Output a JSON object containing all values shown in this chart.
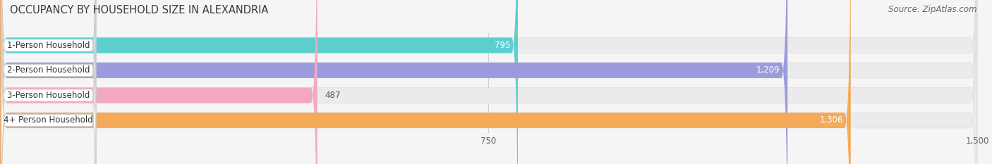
{
  "title": "OCCUPANCY BY HOUSEHOLD SIZE IN ALEXANDRIA",
  "source": "Source: ZipAtlas.com",
  "categories": [
    "1-Person Household",
    "2-Person Household",
    "3-Person Household",
    "4+ Person Household"
  ],
  "values": [
    795,
    1209,
    487,
    1306
  ],
  "colors": [
    "#5ecfcf",
    "#9b9bdd",
    "#f4a8c0",
    "#f5aa5a"
  ],
  "xlim": [
    0,
    1500
  ],
  "xticks": [
    0,
    750,
    1500
  ],
  "bar_height": 0.62,
  "background_color": "#f5f5f5",
  "plot_bg": "#f5f5f5",
  "title_fontsize": 10.5,
  "source_fontsize": 8.5,
  "label_fontsize": 8.5,
  "value_fontsize": 8.5
}
